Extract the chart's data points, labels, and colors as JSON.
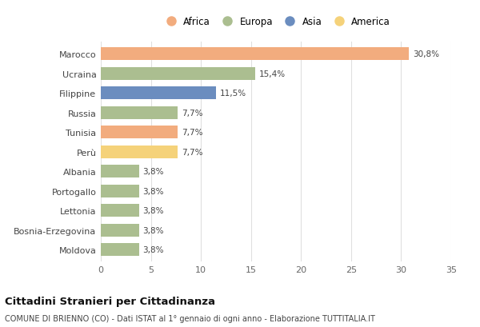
{
  "countries": [
    "Marocco",
    "Ucraina",
    "Filippine",
    "Russia",
    "Tunisia",
    "Perù",
    "Albania",
    "Portogallo",
    "Lettonia",
    "Bosnia-Erzegovina",
    "Moldova"
  ],
  "values": [
    30.8,
    15.4,
    11.5,
    7.7,
    7.7,
    7.7,
    3.8,
    3.8,
    3.8,
    3.8,
    3.8
  ],
  "labels": [
    "30,8%",
    "15,4%",
    "11,5%",
    "7,7%",
    "7,7%",
    "7,7%",
    "3,8%",
    "3,8%",
    "3,8%",
    "3,8%",
    "3,8%"
  ],
  "continents": [
    "Africa",
    "Europa",
    "Asia",
    "Europa",
    "Africa",
    "America",
    "Europa",
    "Europa",
    "Europa",
    "Europa",
    "Europa"
  ],
  "colors": {
    "Africa": "#F2AC7E",
    "Europa": "#ABBE90",
    "Asia": "#6B8DBF",
    "America": "#F5D27A"
  },
  "legend_order": [
    "Africa",
    "Europa",
    "Asia",
    "America"
  ],
  "title": "Cittadini Stranieri per Cittadinanza",
  "subtitle": "COMUNE DI BRIENNO (CO) - Dati ISTAT al 1° gennaio di ogni anno - Elaborazione TUTTITALIA.IT",
  "xlim": [
    0,
    35
  ],
  "xticks": [
    0,
    5,
    10,
    15,
    20,
    25,
    30,
    35
  ],
  "background_color": "#ffffff",
  "bar_height": 0.65,
  "grid_color": "#e0e0e0"
}
